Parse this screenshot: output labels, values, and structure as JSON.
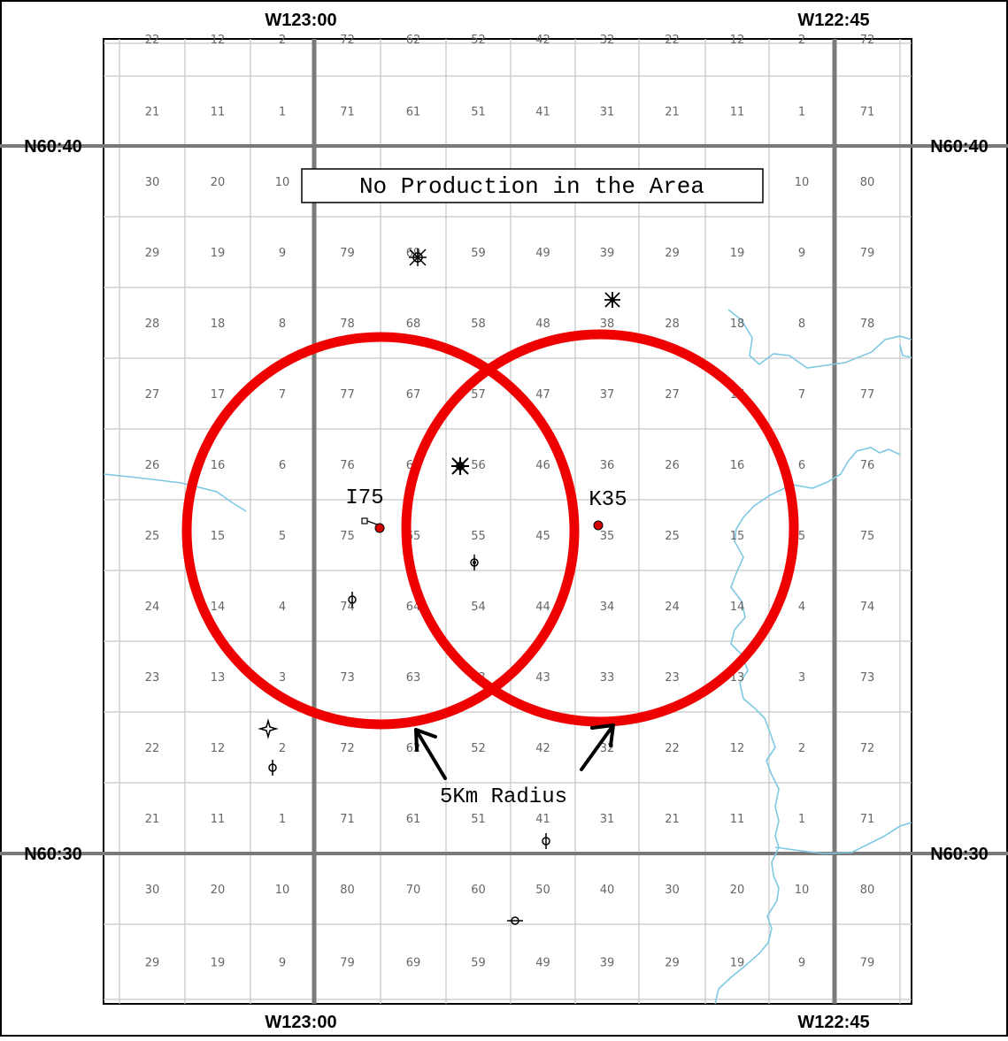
{
  "map": {
    "coords": {
      "top_left": "W123:00",
      "top_right": "W122:45",
      "bottom_left": "W123:00",
      "bottom_right": "W122:45",
      "left_upper": "N60:40",
      "right_upper": "N60:40",
      "left_lower": "N60:30",
      "right_lower": "N60:30"
    },
    "cell_rows": [
      [
        "22",
        "12",
        "2",
        "72",
        "62",
        "52",
        "42",
        "32",
        "22",
        "12",
        "2",
        "72"
      ],
      [
        "21",
        "11",
        "1",
        "71",
        "61",
        "51",
        "41",
        "31",
        "21",
        "11",
        "1",
        "71"
      ],
      [
        "30",
        "20",
        "10",
        "",
        "",
        "",
        "",
        "",
        "",
        "",
        "10",
        "80"
      ],
      [
        "29",
        "19",
        "9",
        "79",
        "69",
        "59",
        "49",
        "39",
        "29",
        "19",
        "9",
        "79"
      ],
      [
        "28",
        "18",
        "8",
        "78",
        "68",
        "58",
        "48",
        "38",
        "28",
        "18",
        "8",
        "78"
      ],
      [
        "27",
        "17",
        "7",
        "77",
        "67",
        "57",
        "47",
        "37",
        "27",
        "17",
        "7",
        "77"
      ],
      [
        "26",
        "16",
        "6",
        "76",
        "66",
        "56",
        "46",
        "36",
        "26",
        "16",
        "6",
        "76"
      ],
      [
        "25",
        "15",
        "5",
        "75",
        "65",
        "55",
        "45",
        "35",
        "25",
        "15",
        "5",
        "75"
      ],
      [
        "24",
        "14",
        "4",
        "74",
        "64",
        "54",
        "44",
        "34",
        "24",
        "14",
        "4",
        "74"
      ],
      [
        "23",
        "13",
        "3",
        "73",
        "63",
        "53",
        "43",
        "33",
        "23",
        "13",
        "3",
        "73"
      ],
      [
        "22",
        "12",
        "2",
        "72",
        "62",
        "52",
        "42",
        "32",
        "22",
        "12",
        "2",
        "72"
      ],
      [
        "21",
        "11",
        "1",
        "71",
        "61",
        "51",
        "41",
        "31",
        "21",
        "11",
        "1",
        "71"
      ],
      [
        "30",
        "20",
        "10",
        "80",
        "70",
        "60",
        "50",
        "40",
        "30",
        "20",
        "10",
        "80"
      ],
      [
        "29",
        "19",
        "9",
        "79",
        "69",
        "59",
        "49",
        "39",
        "29",
        "19",
        "9",
        "79"
      ]
    ],
    "notice": "No Production in the Area",
    "wells": [
      {
        "label": "I75",
        "color": "#d40000"
      },
      {
        "label": "K35",
        "color": "#d40000"
      }
    ],
    "radius_label": "5Km Radius",
    "colors": {
      "circle": "#ee0000",
      "river": "#7ec8e3",
      "grid_major": "#7a7a7a",
      "grid_minor": "#c8c8c8"
    }
  }
}
